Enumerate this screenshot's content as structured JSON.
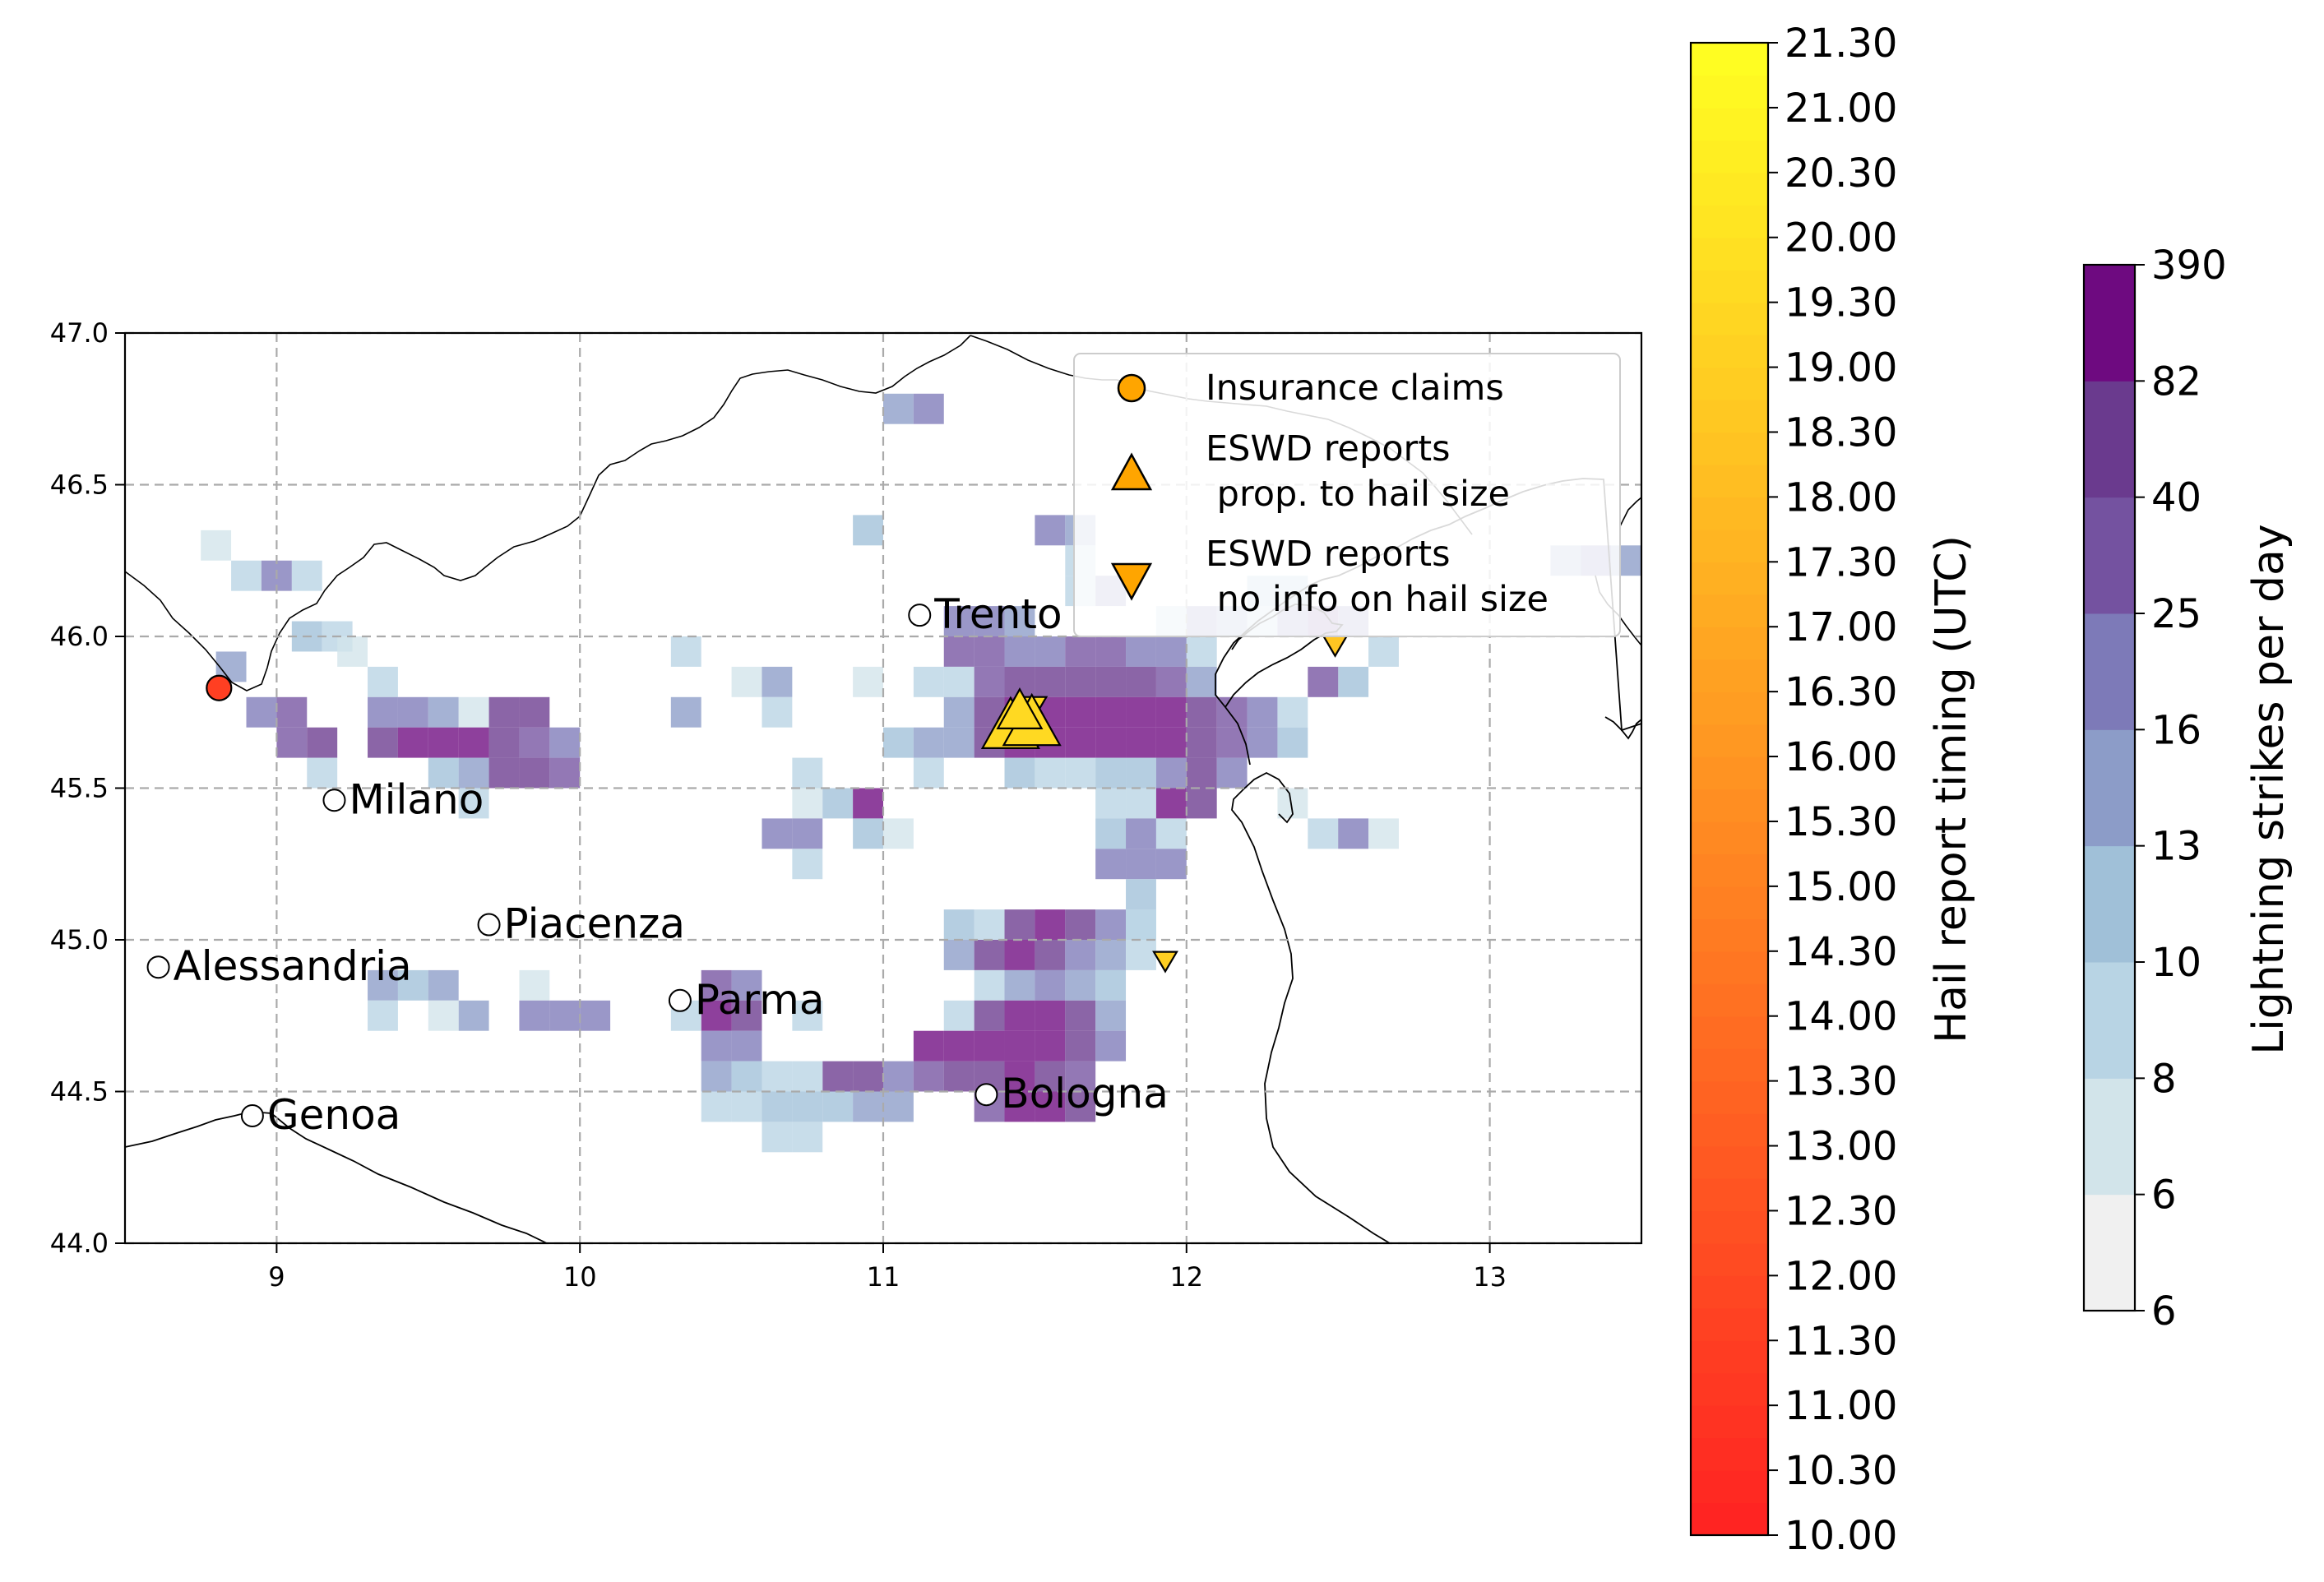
{
  "map": {
    "lon_range": [
      8.5,
      13.5
    ],
    "lat_range": [
      44.0,
      47.0
    ],
    "x_ticks": [
      "9",
      "10",
      "11",
      "12",
      "13"
    ],
    "y_ticks": [
      "44.0",
      "44.5",
      "45.0",
      "45.5",
      "46.0",
      "46.5",
      "47.0"
    ],
    "grid": true,
    "cities": [
      {
        "name": "Milano",
        "lon": 9.19,
        "lat": 45.46
      },
      {
        "name": "Trento",
        "lon": 11.12,
        "lat": 46.07
      },
      {
        "name": "Piacenza",
        "lon": 9.7,
        "lat": 45.05
      },
      {
        "name": "Alessandria",
        "lon": 8.61,
        "lat": 44.91
      },
      {
        "name": "Parma",
        "lon": 10.33,
        "lat": 44.8
      },
      {
        "name": "Genoa",
        "lon": 8.92,
        "lat": 44.42
      },
      {
        "name": "Bologna",
        "lon": 11.34,
        "lat": 44.49
      }
    ],
    "lightning_grid_step": 0.1,
    "lightning_cells": [
      [
        8.8,
        46.3,
        1
      ],
      [
        8.9,
        46.2,
        2
      ],
      [
        9.0,
        46.2,
        5
      ],
      [
        9.1,
        46.2,
        2
      ],
      [
        8.85,
        45.9,
        4
      ],
      [
        9.1,
        46.0,
        3
      ],
      [
        9.2,
        46.0,
        2
      ],
      [
        9.25,
        45.95,
        1
      ],
      [
        9.35,
        45.85,
        2
      ],
      [
        8.95,
        45.75,
        5
      ],
      [
        9.05,
        45.75,
        6
      ],
      [
        9.05,
        45.65,
        6
      ],
      [
        9.15,
        45.65,
        7
      ],
      [
        9.15,
        45.55,
        2
      ],
      [
        9.35,
        45.75,
        5
      ],
      [
        9.45,
        45.75,
        5
      ],
      [
        9.55,
        45.75,
        4
      ],
      [
        9.65,
        45.75,
        1
      ],
      [
        9.75,
        45.75,
        7
      ],
      [
        9.85,
        45.75,
        7
      ],
      [
        9.35,
        45.65,
        7
      ],
      [
        9.45,
        45.65,
        8
      ],
      [
        9.55,
        45.65,
        8
      ],
      [
        9.65,
        45.65,
        8
      ],
      [
        9.75,
        45.65,
        7
      ],
      [
        9.85,
        45.65,
        6
      ],
      [
        9.95,
        45.65,
        5
      ],
      [
        9.55,
        45.55,
        3
      ],
      [
        9.65,
        45.55,
        4
      ],
      [
        9.75,
        45.55,
        7
      ],
      [
        9.85,
        45.55,
        7
      ],
      [
        9.95,
        45.55,
        6
      ],
      [
        9.65,
        45.45,
        2
      ],
      [
        10.35,
        45.95,
        2
      ],
      [
        10.35,
        45.75,
        4
      ],
      [
        10.55,
        45.85,
        1
      ],
      [
        10.65,
        45.85,
        4
      ],
      [
        10.65,
        45.75,
        2
      ],
      [
        10.75,
        45.55,
        2
      ],
      [
        10.75,
        45.45,
        1
      ],
      [
        10.85,
        45.45,
        3
      ],
      [
        10.95,
        45.45,
        8
      ],
      [
        10.95,
        45.35,
        3
      ],
      [
        11.05,
        45.35,
        1
      ],
      [
        10.65,
        45.35,
        5
      ],
      [
        10.75,
        45.35,
        5
      ],
      [
        10.75,
        45.25,
        2
      ],
      [
        10.95,
        45.85,
        1
      ],
      [
        11.05,
        45.65,
        3
      ],
      [
        11.15,
        45.65,
        4
      ],
      [
        11.15,
        45.55,
        2
      ],
      [
        11.15,
        45.85,
        2
      ],
      [
        11.05,
        46.75,
        4
      ],
      [
        11.15,
        46.75,
        5
      ],
      [
        10.95,
        46.35,
        3
      ],
      [
        11.25,
        45.95,
        6
      ],
      [
        11.35,
        45.95,
        6
      ],
      [
        11.45,
        45.95,
        5
      ],
      [
        11.55,
        45.95,
        5
      ],
      [
        11.65,
        45.95,
        6
      ],
      [
        11.75,
        45.95,
        6
      ],
      [
        11.85,
        45.95,
        5
      ],
      [
        11.95,
        45.95,
        5
      ],
      [
        12.05,
        45.95,
        2
      ],
      [
        11.25,
        46.05,
        5
      ],
      [
        11.35,
        46.05,
        5
      ],
      [
        11.45,
        46.05,
        4
      ],
      [
        11.25,
        45.85,
        2
      ],
      [
        11.35,
        45.85,
        6
      ],
      [
        11.45,
        45.85,
        7
      ],
      [
        11.55,
        45.85,
        7
      ],
      [
        11.65,
        45.85,
        7
      ],
      [
        11.75,
        45.85,
        7
      ],
      [
        11.85,
        45.85,
        7
      ],
      [
        11.95,
        45.85,
        6
      ],
      [
        12.05,
        45.85,
        4
      ],
      [
        11.25,
        45.75,
        4
      ],
      [
        11.35,
        45.75,
        7
      ],
      [
        11.45,
        45.75,
        8
      ],
      [
        11.55,
        45.75,
        8
      ],
      [
        11.65,
        45.75,
        8
      ],
      [
        11.75,
        45.75,
        8
      ],
      [
        11.85,
        45.75,
        8
      ],
      [
        11.95,
        45.75,
        8
      ],
      [
        12.05,
        45.75,
        7
      ],
      [
        12.15,
        45.75,
        6
      ],
      [
        12.25,
        45.75,
        5
      ],
      [
        12.35,
        45.75,
        2
      ],
      [
        11.25,
        45.65,
        4
      ],
      [
        11.35,
        45.65,
        7
      ],
      [
        11.45,
        45.65,
        8
      ],
      [
        11.55,
        45.65,
        8
      ],
      [
        11.65,
        45.65,
        8
      ],
      [
        11.75,
        45.65,
        8
      ],
      [
        11.85,
        45.65,
        8
      ],
      [
        11.95,
        45.65,
        8
      ],
      [
        12.05,
        45.65,
        7
      ],
      [
        12.15,
        45.65,
        6
      ],
      [
        12.25,
        45.65,
        5
      ],
      [
        12.35,
        45.65,
        3
      ],
      [
        11.45,
        45.55,
        3
      ],
      [
        11.55,
        45.55,
        2
      ],
      [
        11.65,
        45.55,
        2
      ],
      [
        11.75,
        45.55,
        3
      ],
      [
        11.85,
        45.55,
        3
      ],
      [
        11.95,
        45.55,
        5
      ],
      [
        12.05,
        45.55,
        7
      ],
      [
        12.15,
        45.55,
        5
      ],
      [
        11.85,
        45.45,
        2
      ],
      [
        11.95,
        45.45,
        8
      ],
      [
        12.05,
        45.45,
        7
      ],
      [
        11.75,
        45.45,
        2
      ],
      [
        11.75,
        45.35,
        3
      ],
      [
        11.85,
        45.35,
        5
      ],
      [
        11.95,
        45.35,
        2
      ],
      [
        11.75,
        45.25,
        5
      ],
      [
        11.85,
        45.25,
        5
      ],
      [
        11.95,
        45.25,
        5
      ],
      [
        11.85,
        45.15,
        3
      ],
      [
        11.85,
        45.05,
        2
      ],
      [
        12.35,
        45.45,
        1
      ],
      [
        12.45,
        45.35,
        2
      ],
      [
        12.55,
        45.35,
        5
      ],
      [
        12.65,
        45.35,
        1
      ],
      [
        11.55,
        46.35,
        5
      ],
      [
        11.65,
        46.35,
        4
      ],
      [
        11.65,
        46.25,
        2
      ],
      [
        11.65,
        46.15,
        2
      ],
      [
        11.75,
        46.15,
        5
      ],
      [
        11.95,
        46.05,
        2
      ],
      [
        12.05,
        46.05,
        5
      ],
      [
        12.15,
        46.05,
        4
      ],
      [
        12.25,
        46.05,
        2
      ],
      [
        12.35,
        46.05,
        5
      ],
      [
        12.25,
        46.15,
        3
      ],
      [
        12.35,
        46.15,
        3
      ],
      [
        12.45,
        46.05,
        6
      ],
      [
        12.55,
        46.05,
        5
      ],
      [
        12.65,
        45.95,
        2
      ],
      [
        12.55,
        45.85,
        3
      ],
      [
        12.45,
        45.85,
        6
      ],
      [
        13.35,
        46.25,
        1
      ],
      [
        13.25,
        46.25,
        4
      ],
      [
        13.35,
        46.25,
        5
      ],
      [
        13.45,
        46.25,
        4
      ],
      [
        11.25,
        44.95,
        4
      ],
      [
        11.35,
        44.95,
        7
      ],
      [
        11.45,
        44.95,
        8
      ],
      [
        11.55,
        44.95,
        7
      ],
      [
        11.65,
        44.95,
        5
      ],
      [
        11.75,
        44.95,
        4
      ],
      [
        11.85,
        44.95,
        2
      ],
      [
        11.35,
        45.05,
        2
      ],
      [
        11.45,
        45.05,
        7
      ],
      [
        11.55,
        45.05,
        8
      ],
      [
        11.65,
        45.05,
        7
      ],
      [
        11.75,
        45.05,
        5
      ],
      [
        11.85,
        45.05,
        2
      ],
      [
        11.25,
        45.05,
        3
      ],
      [
        11.35,
        44.85,
        2
      ],
      [
        11.45,
        44.85,
        4
      ],
      [
        11.55,
        44.85,
        5
      ],
      [
        11.65,
        44.85,
        4
      ],
      [
        11.75,
        44.85,
        3
      ],
      [
        11.25,
        44.75,
        2
      ],
      [
        11.35,
        44.75,
        7
      ],
      [
        11.45,
        44.75,
        8
      ],
      [
        11.55,
        44.75,
        8
      ],
      [
        11.65,
        44.75,
        7
      ],
      [
        11.75,
        44.75,
        4
      ],
      [
        11.15,
        44.65,
        8
      ],
      [
        11.25,
        44.65,
        8
      ],
      [
        11.35,
        44.65,
        8
      ],
      [
        11.45,
        44.65,
        8
      ],
      [
        11.55,
        44.65,
        8
      ],
      [
        11.65,
        44.65,
        7
      ],
      [
        11.75,
        44.65,
        5
      ],
      [
        11.05,
        44.55,
        5
      ],
      [
        11.15,
        44.55,
        6
      ],
      [
        11.25,
        44.55,
        7
      ],
      [
        11.35,
        44.55,
        7
      ],
      [
        11.45,
        44.55,
        8
      ],
      [
        11.55,
        44.55,
        7
      ],
      [
        11.65,
        44.55,
        6
      ],
      [
        11.35,
        44.45,
        6
      ],
      [
        11.45,
        44.45,
        8
      ],
      [
        11.55,
        44.45,
        8
      ],
      [
        11.65,
        44.45,
        7
      ],
      [
        10.45,
        44.85,
        6
      ],
      [
        10.55,
        44.85,
        5
      ],
      [
        10.45,
        44.75,
        8
      ],
      [
        10.55,
        44.75,
        7
      ],
      [
        10.75,
        44.75,
        2
      ],
      [
        10.45,
        44.65,
        5
      ],
      [
        10.55,
        44.65,
        5
      ],
      [
        10.45,
        44.55,
        4
      ],
      [
        10.55,
        44.55,
        3
      ],
      [
        10.65,
        44.45,
        3
      ],
      [
        10.45,
        44.45,
        2
      ],
      [
        10.55,
        44.45,
        2
      ],
      [
        10.75,
        44.45,
        3
      ],
      [
        10.85,
        44.45,
        3
      ],
      [
        10.95,
        44.45,
        4
      ],
      [
        10.65,
        44.35,
        2
      ],
      [
        10.75,
        44.35,
        2
      ],
      [
        10.85,
        44.55,
        7
      ],
      [
        10.95,
        44.55,
        7
      ],
      [
        11.05,
        44.45,
        4
      ],
      [
        10.65,
        44.55,
        2
      ],
      [
        10.75,
        44.55,
        2
      ],
      [
        9.35,
        44.85,
        4
      ],
      [
        9.45,
        44.85,
        3
      ],
      [
        9.55,
        44.85,
        4
      ],
      [
        9.65,
        44.75,
        4
      ],
      [
        9.35,
        44.75,
        2
      ],
      [
        9.55,
        44.75,
        1
      ],
      [
        9.85,
        44.85,
        1
      ],
      [
        9.85,
        44.75,
        5
      ],
      [
        9.95,
        44.75,
        5
      ],
      [
        10.05,
        44.75,
        5
      ],
      [
        10.35,
        44.75,
        2
      ]
    ],
    "insurance_claims": [
      {
        "lon": 8.81,
        "lat": 45.83,
        "time": 11.3
      }
    ],
    "eswd_size_reports": [
      {
        "lon": 11.42,
        "lat": 45.7,
        "time": 19.3,
        "size": 3
      },
      {
        "lon": 11.49,
        "lat": 45.71,
        "time": 19.3,
        "size": 3
      },
      {
        "lon": 11.45,
        "lat": 45.75,
        "time": 19.3,
        "size": 2
      }
    ],
    "eswd_noinfo_reports": [
      {
        "lon": 11.5,
        "lat": 45.77,
        "time": 19.3
      },
      {
        "lon": 11.93,
        "lat": 44.93,
        "time": 19.0
      },
      {
        "lon": 12.49,
        "lat": 45.97,
        "time": 18.3
      }
    ]
  },
  "legend": {
    "items": [
      {
        "label_1": "Insurance claims",
        "label_2": ""
      },
      {
        "label_1": "ESWD reports",
        "label_2": " prop. to hail size"
      },
      {
        "label_1": "ESWD reports",
        "label_2": " no info on hail size"
      }
    ],
    "marker_color": "#ffa500"
  },
  "timing_colorbar": {
    "label": "Hail report timing (UTC)",
    "ticks": [
      "10.00",
      "10.30",
      "11.00",
      "11.30",
      "12.00",
      "12.30",
      "13.00",
      "13.30",
      "14.00",
      "14.30",
      "15.00",
      "15.30",
      "16.00",
      "16.30",
      "17.00",
      "17.30",
      "18.00",
      "18.30",
      "19.00",
      "19.30",
      "20.00",
      "20.30",
      "21.00",
      "21.30"
    ],
    "color_start": "#ff2222",
    "color_end": "#ffff22"
  },
  "lightning_colorbar": {
    "label": "Lightning strikes per day",
    "ticks": [
      "6",
      "6",
      "8",
      "10",
      "13",
      "16",
      "25",
      "40",
      "82",
      "390"
    ],
    "colors": [
      "#f0f0f0",
      "#d2e4ea",
      "#b8d4e4",
      "#a0c0d8",
      "#8c9cc8",
      "#7d7ab8",
      "#7452a0",
      "#6a3a8e",
      "#6e0a80"
    ]
  }
}
